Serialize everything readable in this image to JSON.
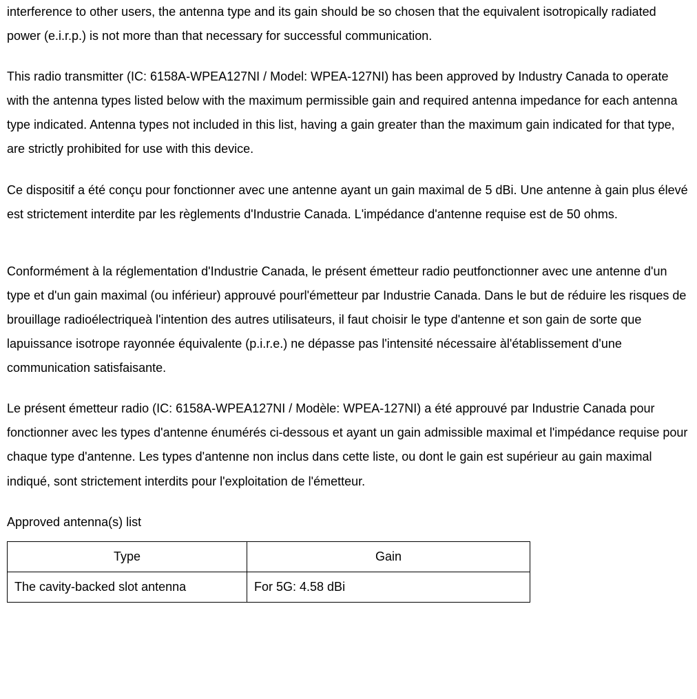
{
  "paragraphs": {
    "p1": "interference to other users, the antenna type and its gain should be so chosen that the equivalent isotropically radiated power (e.i.r.p.) is not more than that necessary for successful communication.",
    "p2": "This radio transmitter (IC: 6158A-WPEA127NI / Model: WPEA-127NI) has been approved by Industry Canada to operate with the antenna types listed below with the maximum permissible gain and required antenna impedance for each antenna type indicated. Antenna types not included in this list, having a gain greater than the maximum gain indicated for that type, are strictly prohibited for use with this device.",
    "p3": "Ce dispositif a été conçu pour fonctionner avec une antenne ayant un gain maximal de 5 dBi. Une antenne à gain plus élevé est strictement interdite par les règlements d'Industrie Canada. L'impédance d'antenne requise est de 50 ohms.",
    "p4": "Conformément à la réglementation d'Industrie Canada, le présent émetteur radio peutfonctionner avec une antenne d'un type et d'un gain maximal (ou inférieur) approuvé pourl'émetteur par Industrie Canada. Dans le but de réduire les risques de brouillage radioélectriqueà l'intention des autres utilisateurs, il faut choisir le type d'antenne et son gain de sorte que lapuissance isotrope rayonnée équivalente (p.i.r.e.) ne dépasse pas l'intensité nécessaire àl'établissement d'une communication satisfaisante.",
    "p5": "Le présent émetteur radio (IC: 6158A-WPEA127NI / Modèle: WPEA-127NI) a été approuvé par Industrie Canada pour fonctionner avec les types d'antenne énumérés ci-dessous et ayant un gain admissible maximal et l'impédance requise pour chaque type d'antenne. Les types d'antenne non inclus dans cette liste, ou dont le gain est supérieur au gain maximal indiqué, sont strictement interdits pour l'exploitation de l'émetteur."
  },
  "table": {
    "label": "Approved antenna(s) list",
    "columns": [
      "Type",
      "Gain"
    ],
    "rows": [
      [
        "The cavity-backed slot antenna",
        "For 5G: 4.58 dBi"
      ]
    ]
  }
}
